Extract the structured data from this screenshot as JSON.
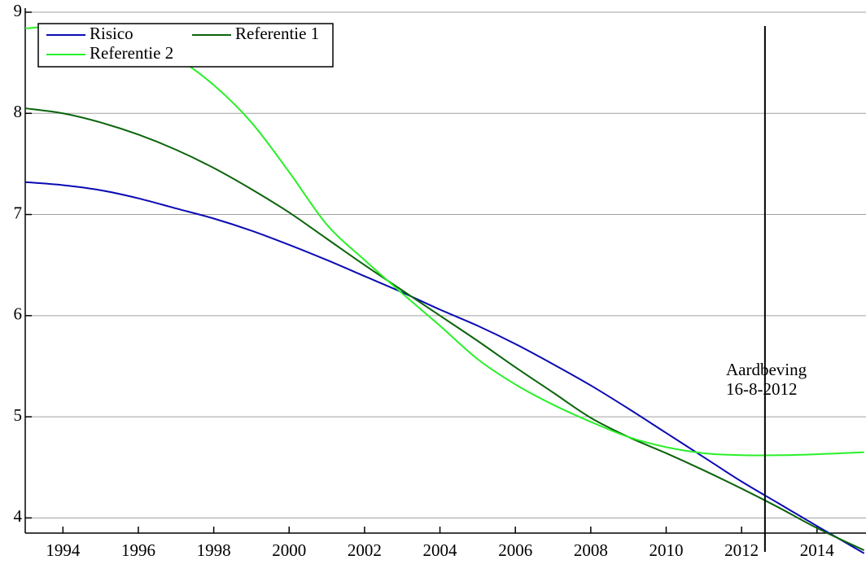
{
  "chart_data": {
    "type": "line",
    "x": [
      1993,
      1994,
      1995,
      1996,
      1997,
      1998,
      1999,
      2000,
      2001,
      2002,
      2003,
      2004,
      2005,
      2006,
      2007,
      2008,
      2009,
      2010,
      2011,
      2012,
      2013,
      2014,
      2015.25
    ],
    "series": [
      {
        "name": "Risico",
        "color": "#0a0ab4",
        "values": [
          7.32,
          7.29,
          7.24,
          7.16,
          7.06,
          6.96,
          6.84,
          6.7,
          6.55,
          6.39,
          6.23,
          6.06,
          5.9,
          5.72,
          5.52,
          5.31,
          5.08,
          4.84,
          4.6,
          4.36,
          4.14,
          3.92,
          3.65
        ]
      },
      {
        "name": "Referentie 1",
        "color": "#0a640a",
        "values": [
          8.05,
          8.0,
          7.91,
          7.79,
          7.64,
          7.46,
          7.25,
          7.02,
          6.76,
          6.5,
          6.25,
          6.0,
          5.75,
          5.49,
          5.24,
          4.99,
          4.8,
          4.64,
          4.47,
          4.29,
          4.1,
          3.9,
          3.68
        ]
      },
      {
        "name": "Referentie 2",
        "color": "#28f028",
        "values": [
          8.84,
          8.86,
          8.82,
          8.72,
          8.55,
          8.28,
          7.91,
          7.42,
          6.9,
          6.55,
          6.22,
          5.9,
          5.57,
          5.32,
          5.12,
          4.95,
          4.8,
          4.7,
          4.64,
          4.62,
          4.62,
          4.63,
          4.65
        ]
      }
    ],
    "xlim": [
      1993,
      2015.3
    ],
    "ylim": [
      3.85,
      9.0
    ],
    "xticks": [
      1994,
      1996,
      1998,
      2000,
      2002,
      2004,
      2006,
      2008,
      2010,
      2012,
      2014
    ],
    "yticks": [
      4,
      5,
      6,
      7,
      8,
      9
    ],
    "grid": true,
    "legend": "upper-left",
    "event": {
      "x": 2012.62,
      "label": [
        "Aardbeving",
        "16-8-2012"
      ],
      "color": "#000000"
    }
  }
}
